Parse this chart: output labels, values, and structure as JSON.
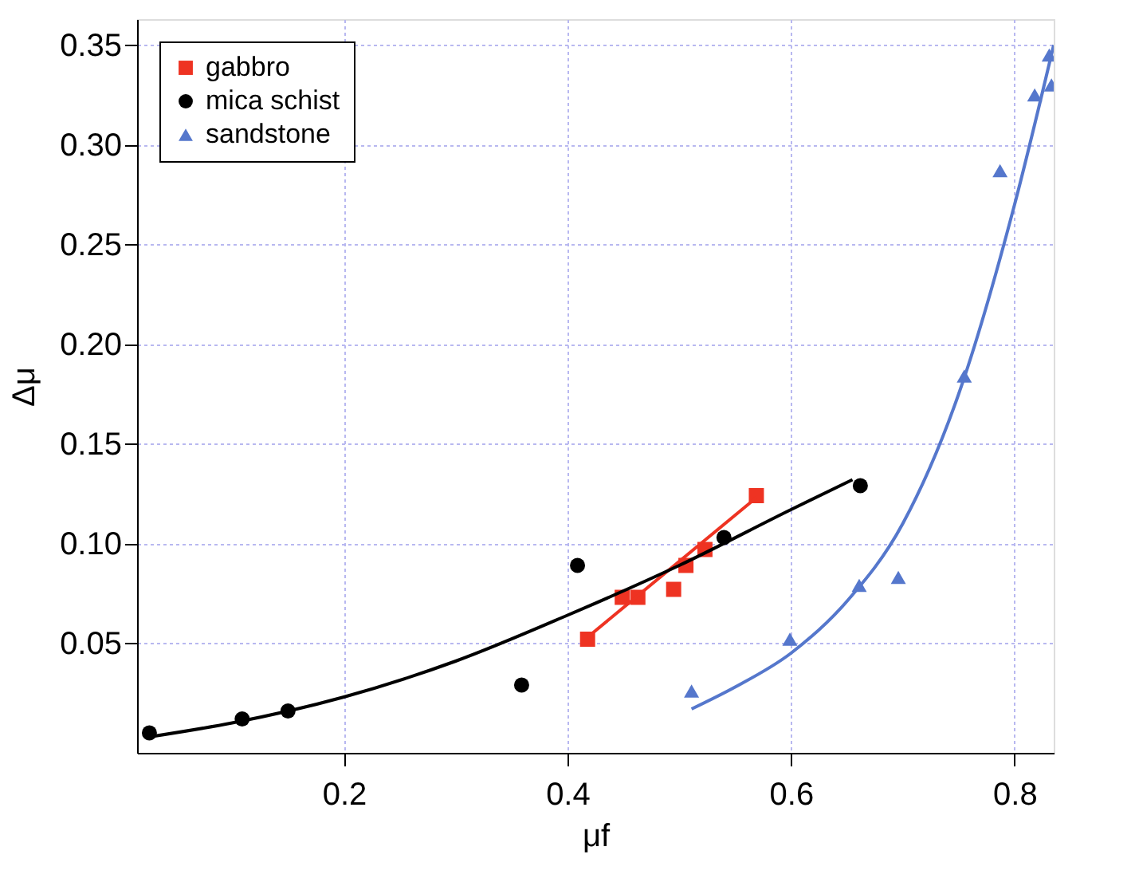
{
  "chart_data": {
    "type": "scatter",
    "xlabel": "μf",
    "ylabel": "Δμ",
    "xlim": [
      0.015,
      0.835
    ],
    "ylim": [
      -0.005,
      0.363
    ],
    "xticks": [
      0.2,
      0.4,
      0.6,
      0.8
    ],
    "yticks": [
      {
        "value": 0.05,
        "label": "0.05"
      },
      {
        "value": 0.1,
        "label": "0.10"
      },
      {
        "value": 0.15,
        "label": "0.15"
      },
      {
        "value": 0.2,
        "label": "0.20"
      },
      {
        "value": 0.25,
        "label": "0.25"
      },
      {
        "value": 0.3,
        "label": "0.30"
      },
      {
        "value": 0.35,
        "label": "0.35"
      }
    ],
    "grid": true,
    "legend": "top left",
    "series": [
      {
        "name": "gabbro",
        "marker": "square",
        "color": "#ee3322",
        "x": [
          0.418,
          0.449,
          0.463,
          0.495,
          0.506,
          0.523,
          0.569
        ],
        "values": [
          0.052,
          0.073,
          0.073,
          0.077,
          0.089,
          0.097,
          0.124
        ]
      },
      {
        "name": "mica schist",
        "marker": "circle",
        "color": "#000000",
        "x": [
          0.026,
          0.109,
          0.15,
          0.359,
          0.409,
          0.54,
          0.662
        ],
        "values": [
          0.005,
          0.012,
          0.016,
          0.029,
          0.089,
          0.103,
          0.129
        ]
      },
      {
        "name": "sandstone",
        "marker": "triangle",
        "color": "#5577cc",
        "x": [
          0.511,
          0.599,
          0.661,
          0.696,
          0.755,
          0.787,
          0.818,
          0.831,
          0.833
        ],
        "values": [
          0.026,
          0.052,
          0.079,
          0.083,
          0.184,
          0.287,
          0.325,
          0.345,
          0.33
        ]
      },
      {
        "type": "line",
        "line_style": "solid",
        "color": "#ee3322",
        "x": [
          0.418,
          0.569
        ],
        "values": [
          0.053,
          0.123
        ]
      },
      {
        "type": "line",
        "line_style": "solid",
        "color": "#000000",
        "x": [
          0.026,
          0.1,
          0.2,
          0.3,
          0.4,
          0.5,
          0.6,
          0.655
        ],
        "values": [
          0.003,
          0.01,
          0.023,
          0.041,
          0.064,
          0.089,
          0.117,
          0.132
        ]
      },
      {
        "type": "line",
        "line_style": "solid",
        "color": "#5577cc",
        "x": [
          0.511,
          0.55,
          0.6,
          0.65,
          0.7,
          0.75,
          0.8,
          0.835
        ],
        "values": [
          0.017,
          0.028,
          0.045,
          0.071,
          0.11,
          0.175,
          0.27,
          0.35
        ]
      }
    ]
  }
}
